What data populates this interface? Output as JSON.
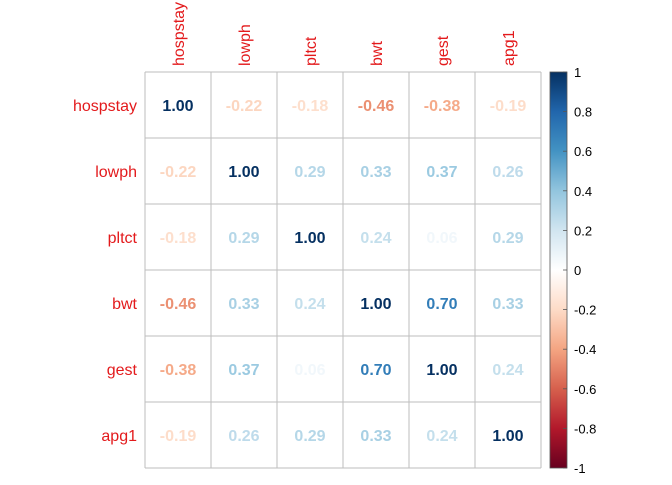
{
  "chart_data": {
    "type": "heatmap",
    "variables": [
      "hospstay",
      "lowph",
      "pltct",
      "bwt",
      "gest",
      "apg1"
    ],
    "matrix": [
      [
        1.0,
        -0.22,
        -0.18,
        -0.46,
        -0.38,
        -0.19
      ],
      [
        -0.22,
        1.0,
        0.29,
        0.33,
        0.37,
        0.26
      ],
      [
        -0.18,
        0.29,
        1.0,
        0.24,
        0.06,
        0.29
      ],
      [
        -0.46,
        0.33,
        0.24,
        1.0,
        0.7,
        0.33
      ],
      [
        -0.38,
        0.37,
        0.06,
        0.7,
        1.0,
        0.24
      ],
      [
        -0.19,
        0.26,
        0.29,
        0.33,
        0.24,
        1.0
      ]
    ],
    "value_range": [
      -1,
      1
    ],
    "colorbar_ticks": [
      "1",
      "0.8",
      "0.6",
      "0.4",
      "0.2",
      "0",
      "-0.2",
      "-0.4",
      "-0.6",
      "-0.8",
      "-1"
    ],
    "label_color": "#e31a1c",
    "grid": true,
    "legend": "right"
  }
}
